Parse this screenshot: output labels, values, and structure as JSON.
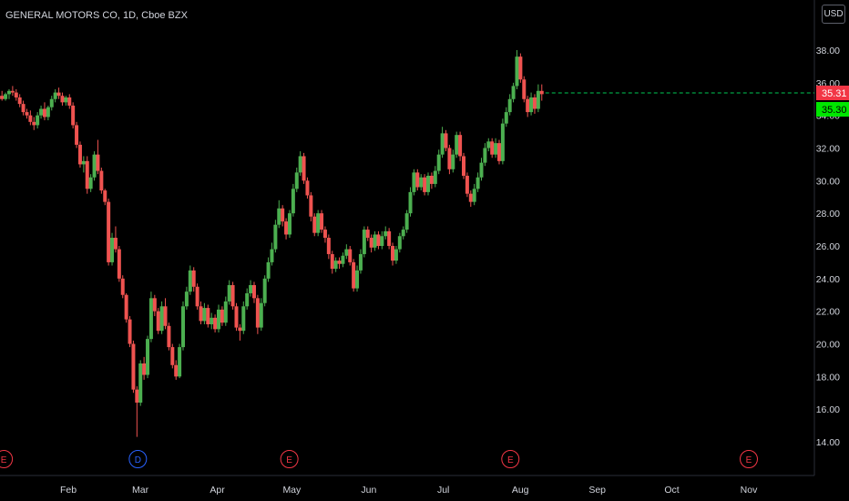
{
  "symbol": {
    "name": "GENERAL MOTORS CO",
    "interval": "1D",
    "exchange": "Cboe BZX",
    "currency": "USD"
  },
  "colors": {
    "background": "#000000",
    "up": "#26a69a",
    "up_bright": "#4caf50",
    "down": "#ef5350",
    "last_price_label": "#f23645",
    "bid_label": "#00e600",
    "price_line": "#00c853",
    "axis_text": "#d1d4dc",
    "earnings": "#f23645",
    "dividend": "#2962ff"
  },
  "last_price": "35.31",
  "bid_price": "35.30",
  "chart_data": {
    "type": "candlestick",
    "title": "GENERAL MOTORS CO, 1D, Cboe BZX",
    "ylim": [
      12.5,
      39.5
    ],
    "y_ticks": [
      "14.00",
      "16.00",
      "18.00",
      "20.00",
      "22.00",
      "24.00",
      "26.00",
      "28.00",
      "30.00",
      "32.00",
      "34.00",
      "36.00",
      "38.00"
    ],
    "x_ticks": [
      "Feb",
      "Mar",
      "Apr",
      "May",
      "Jun",
      "Jul",
      "Aug",
      "Sep",
      "Oct",
      "Nov"
    ],
    "x_range_days": [
      0,
      302
    ],
    "x_tick_days": [
      31,
      60,
      91,
      121,
      152,
      182,
      213,
      244,
      274,
      305
    ],
    "events": [
      {
        "label": "E",
        "type": "earnings",
        "day": 5
      },
      {
        "label": "D",
        "type": "dividend",
        "day": 59
      },
      {
        "label": "E",
        "type": "earnings",
        "day": 120
      },
      {
        "label": "E",
        "type": "earnings",
        "day": 209
      },
      {
        "label": "E",
        "type": "earnings",
        "day": 305
      }
    ],
    "candle_days_step": 1.43,
    "candles": [
      [
        35.8,
        35.9,
        35.2,
        35.4
      ],
      [
        35.4,
        35.6,
        34.7,
        35.0
      ],
      [
        35.0,
        35.3,
        34.8,
        35.2
      ],
      [
        35.2,
        35.5,
        34.9,
        35.0
      ],
      [
        35.0,
        35.4,
        34.9,
        35.3
      ],
      [
        35.3,
        35.6,
        35.0,
        35.5
      ],
      [
        35.5,
        35.8,
        35.2,
        35.4
      ],
      [
        35.4,
        35.6,
        34.9,
        35.1
      ],
      [
        35.1,
        35.3,
        34.5,
        34.7
      ],
      [
        34.7,
        34.9,
        34.0,
        34.2
      ],
      [
        34.2,
        34.4,
        33.8,
        34.0
      ],
      [
        34.0,
        34.3,
        33.4,
        33.6
      ],
      [
        33.6,
        33.9,
        33.1,
        33.4
      ],
      [
        33.4,
        34.2,
        33.2,
        34.0
      ],
      [
        34.0,
        34.6,
        33.8,
        34.4
      ],
      [
        34.4,
        34.8,
        33.7,
        33.9
      ],
      [
        33.9,
        34.6,
        33.7,
        34.5
      ],
      [
        34.5,
        35.2,
        34.3,
        35.0
      ],
      [
        35.0,
        35.6,
        34.8,
        35.4
      ],
      [
        35.4,
        35.7,
        35.0,
        35.2
      ],
      [
        35.2,
        35.4,
        34.6,
        34.8
      ],
      [
        34.8,
        35.2,
        34.6,
        35.1
      ],
      [
        35.1,
        35.3,
        34.4,
        34.6
      ],
      [
        34.6,
        34.8,
        33.2,
        33.4
      ],
      [
        33.4,
        33.6,
        32.0,
        32.2
      ],
      [
        32.2,
        32.4,
        30.8,
        31.0
      ],
      [
        31.0,
        31.5,
        30.5,
        31.2
      ],
      [
        31.2,
        31.5,
        29.2,
        29.5
      ],
      [
        29.5,
        30.4,
        29.3,
        30.2
      ],
      [
        30.2,
        31.8,
        30.0,
        31.6
      ],
      [
        31.6,
        32.5,
        30.4,
        30.6
      ],
      [
        30.6,
        30.8,
        29.2,
        29.4
      ],
      [
        29.4,
        29.5,
        28.5,
        28.7
      ],
      [
        28.7,
        28.9,
        24.8,
        25.0
      ],
      [
        25.0,
        26.8,
        24.8,
        26.5
      ],
      [
        26.5,
        27.2,
        25.6,
        25.8
      ],
      [
        25.8,
        26.0,
        23.8,
        24.0
      ],
      [
        24.0,
        24.2,
        22.8,
        23.0
      ],
      [
        23.0,
        23.1,
        21.3,
        21.5
      ],
      [
        21.5,
        21.7,
        19.8,
        20.0
      ],
      [
        20.0,
        20.2,
        17.0,
        17.2
      ],
      [
        17.2,
        17.4,
        14.3,
        16.4
      ],
      [
        16.4,
        19.0,
        16.2,
        18.8
      ],
      [
        18.8,
        19.2,
        17.8,
        18.1
      ],
      [
        18.1,
        20.5,
        17.9,
        20.3
      ],
      [
        20.3,
        23.2,
        20.1,
        22.8
      ],
      [
        22.8,
        23.0,
        21.7,
        22.0
      ],
      [
        22.0,
        22.2,
        20.6,
        20.8
      ],
      [
        20.8,
        22.6,
        20.6,
        22.3
      ],
      [
        22.3,
        22.8,
        20.9,
        21.1
      ],
      [
        21.1,
        21.3,
        19.6,
        19.8
      ],
      [
        19.8,
        20.0,
        18.5,
        18.7
      ],
      [
        18.7,
        19.0,
        17.8,
        18.0
      ],
      [
        18.0,
        20.0,
        17.9,
        19.8
      ],
      [
        19.8,
        22.6,
        19.6,
        22.3
      ],
      [
        22.3,
        23.5,
        22.1,
        23.2
      ],
      [
        23.2,
        24.8,
        23.0,
        24.5
      ],
      [
        24.5,
        24.7,
        23.2,
        23.5
      ],
      [
        23.5,
        23.7,
        22.1,
        22.3
      ],
      [
        22.3,
        22.6,
        21.2,
        21.4
      ],
      [
        21.4,
        22.5,
        21.2,
        22.2
      ],
      [
        22.2,
        22.4,
        21.0,
        21.2
      ],
      [
        21.2,
        21.9,
        20.9,
        21.6
      ],
      [
        21.6,
        21.8,
        20.7,
        20.9
      ],
      [
        20.9,
        22.4,
        20.7,
        22.1
      ],
      [
        22.1,
        22.3,
        21.1,
        21.3
      ],
      [
        21.3,
        22.9,
        21.1,
        22.6
      ],
      [
        22.6,
        23.9,
        22.4,
        23.6
      ],
      [
        23.6,
        23.8,
        22.1,
        22.3
      ],
      [
        22.3,
        22.5,
        20.8,
        21.0
      ],
      [
        21.0,
        21.2,
        20.2,
        20.8
      ],
      [
        20.8,
        22.6,
        20.6,
        22.3
      ],
      [
        22.3,
        23.4,
        22.1,
        23.1
      ],
      [
        23.1,
        23.9,
        22.9,
        23.6
      ],
      [
        23.6,
        23.8,
        22.5,
        22.8
      ],
      [
        22.8,
        23.0,
        20.6,
        21.0
      ],
      [
        21.0,
        22.8,
        20.8,
        22.5
      ],
      [
        22.5,
        24.2,
        22.3,
        24.0
      ],
      [
        24.0,
        25.3,
        23.8,
        25.0
      ],
      [
        25.0,
        26.2,
        24.8,
        25.8
      ],
      [
        25.8,
        27.6,
        25.6,
        27.3
      ],
      [
        27.3,
        28.8,
        27.1,
        28.3
      ],
      [
        28.3,
        28.5,
        27.2,
        27.5
      ],
      [
        27.5,
        27.7,
        26.4,
        26.7
      ],
      [
        26.7,
        28.2,
        26.5,
        28.0
      ],
      [
        28.0,
        29.8,
        27.8,
        29.5
      ],
      [
        29.5,
        30.8,
        29.3,
        30.5
      ],
      [
        30.5,
        31.8,
        30.3,
        31.5
      ],
      [
        31.5,
        31.7,
        29.8,
        30.0
      ],
      [
        30.0,
        30.2,
        28.9,
        29.1
      ],
      [
        29.1,
        29.3,
        27.5,
        27.8
      ],
      [
        27.8,
        28.0,
        26.6,
        26.8
      ],
      [
        26.8,
        28.2,
        26.6,
        28.0
      ],
      [
        28.0,
        28.2,
        26.8,
        27.0
      ],
      [
        27.0,
        27.2,
        26.2,
        26.5
      ],
      [
        26.5,
        26.7,
        25.2,
        25.5
      ],
      [
        25.5,
        25.7,
        24.3,
        24.6
      ],
      [
        24.6,
        25.3,
        24.4,
        25.1
      ],
      [
        25.1,
        25.3,
        24.6,
        24.9
      ],
      [
        24.9,
        25.6,
        24.7,
        25.4
      ],
      [
        25.4,
        26.1,
        25.2,
        25.8
      ],
      [
        25.8,
        26.0,
        24.8,
        25.0
      ],
      [
        25.0,
        25.2,
        23.2,
        23.4
      ],
      [
        23.4,
        24.8,
        23.2,
        24.5
      ],
      [
        24.5,
        25.8,
        24.3,
        25.5
      ],
      [
        25.5,
        27.2,
        25.3,
        27.0
      ],
      [
        27.0,
        27.2,
        26.3,
        26.5
      ],
      [
        26.5,
        26.7,
        25.6,
        25.9
      ],
      [
        25.9,
        26.9,
        25.7,
        26.7
      ],
      [
        26.7,
        26.9,
        25.8,
        26.0
      ],
      [
        26.0,
        26.9,
        25.8,
        26.6
      ],
      [
        26.6,
        27.2,
        26.4,
        26.9
      ],
      [
        26.9,
        27.1,
        25.8,
        26.0
      ],
      [
        26.0,
        26.2,
        24.8,
        25.1
      ],
      [
        25.1,
        26.0,
        24.9,
        25.8
      ],
      [
        25.8,
        26.8,
        25.6,
        26.6
      ],
      [
        26.6,
        27.2,
        26.4,
        27.0
      ],
      [
        27.0,
        28.2,
        26.8,
        28.0
      ],
      [
        28.0,
        29.6,
        27.8,
        29.3
      ],
      [
        29.3,
        30.7,
        29.1,
        30.5
      ],
      [
        30.5,
        30.7,
        29.4,
        29.6
      ],
      [
        29.6,
        30.4,
        29.4,
        30.2
      ],
      [
        30.2,
        30.4,
        29.1,
        29.3
      ],
      [
        29.3,
        30.5,
        29.1,
        30.3
      ],
      [
        30.3,
        30.5,
        29.5,
        29.8
      ],
      [
        29.8,
        30.9,
        29.6,
        30.6
      ],
      [
        30.6,
        31.9,
        30.4,
        31.6
      ],
      [
        31.6,
        33.3,
        31.4,
        32.9
      ],
      [
        32.9,
        33.1,
        31.8,
        32.0
      ],
      [
        32.0,
        32.2,
        30.4,
        30.7
      ],
      [
        30.7,
        31.9,
        30.5,
        31.6
      ],
      [
        31.6,
        33.0,
        31.4,
        32.8
      ],
      [
        32.8,
        33.0,
        31.2,
        31.5
      ],
      [
        31.5,
        31.7,
        30.1,
        30.3
      ],
      [
        30.3,
        30.5,
        29.0,
        29.2
      ],
      [
        29.2,
        29.4,
        28.4,
        28.7
      ],
      [
        28.7,
        29.8,
        28.5,
        29.5
      ],
      [
        29.5,
        30.5,
        29.3,
        30.2
      ],
      [
        30.2,
        31.4,
        30.0,
        31.1
      ],
      [
        31.1,
        32.3,
        30.9,
        32.0
      ],
      [
        32.0,
        32.6,
        31.8,
        32.4
      ],
      [
        32.4,
        32.6,
        31.4,
        31.6
      ],
      [
        31.6,
        32.6,
        31.4,
        32.3
      ],
      [
        32.3,
        32.5,
        31.0,
        31.2
      ],
      [
        31.2,
        33.8,
        31.0,
        33.5
      ],
      [
        33.5,
        34.5,
        33.3,
        34.2
      ],
      [
        34.2,
        35.3,
        34.0,
        35.0
      ],
      [
        35.0,
        36.0,
        34.8,
        35.8
      ],
      [
        35.8,
        38.0,
        35.6,
        37.6
      ],
      [
        37.6,
        37.8,
        36.0,
        36.2
      ],
      [
        36.2,
        36.4,
        34.8,
        35.0
      ],
      [
        35.0,
        35.2,
        33.9,
        34.2
      ],
      [
        34.2,
        35.4,
        34.0,
        35.1
      ],
      [
        35.1,
        35.3,
        34.1,
        34.4
      ],
      [
        34.4,
        35.9,
        34.2,
        35.5
      ],
      [
        35.5,
        35.9,
        34.9,
        35.3
      ]
    ]
  }
}
